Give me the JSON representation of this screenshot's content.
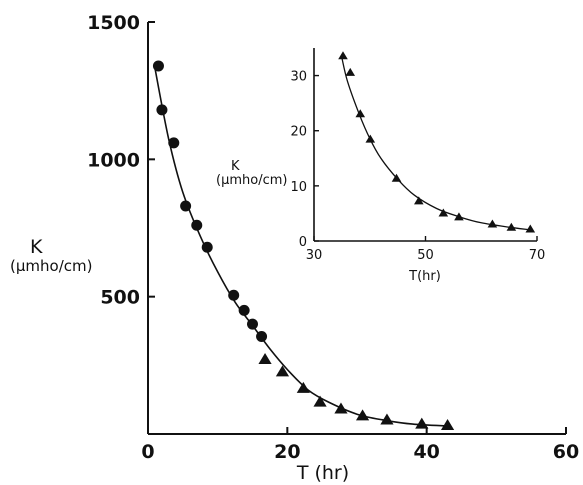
{
  "chart_data": [
    {
      "type": "scatter",
      "xlabel": "T (hr)",
      "ylabel": "K",
      "ylabel_unit": "(μmho/cm)",
      "xlim": [
        0,
        60
      ],
      "ylim": [
        0,
        1500
      ],
      "xticks": [
        "0",
        "20",
        "40",
        "60"
      ],
      "yticks": [
        "500",
        "1000",
        "1500"
      ],
      "grid": false,
      "series": [
        {
          "marker": "circle",
          "x": [
            1.5,
            2.0,
            3.7,
            5.4,
            7.0,
            8.5,
            12.3,
            13.8,
            15.0,
            16.3
          ],
          "y": [
            1340,
            1180,
            1060,
            830,
            760,
            680,
            505,
            450,
            400,
            355
          ]
        },
        {
          "marker": "triangle",
          "x": [
            16.8,
            19.3,
            22.3,
            24.7,
            27.7,
            30.8,
            34.3,
            39.3,
            43.0
          ],
          "y": [
            270,
            225,
            165,
            115,
            90,
            65,
            50,
            35,
            30
          ]
        }
      ],
      "fit_curve": {
        "x": [
          0.9,
          3,
          5,
          7.5,
          10,
          12.5,
          15,
          17.5,
          20,
          23,
          26,
          30,
          34,
          38,
          43
        ],
        "y": [
          1345,
          1070,
          880,
          720,
          590,
          480,
          395,
          310,
          235,
          160,
          115,
          72,
          50,
          36,
          29
        ]
      }
    },
    {
      "type": "scatter",
      "inset": true,
      "xlabel": "T(hr)",
      "ylabel": "K",
      "ylabel_unit": "(μmho/cm)",
      "xlim": [
        30,
        70
      ],
      "ylim": [
        0,
        35
      ],
      "xticks": [
        "30",
        "50",
        "70"
      ],
      "yticks": [
        "0",
        "10",
        "20",
        "30"
      ],
      "grid": false,
      "series": [
        {
          "marker": "triangle",
          "x": [
            35.2,
            36.5,
            38.3,
            40.1,
            44.8,
            48.8,
            53.2,
            56.0,
            62.0,
            65.4,
            68.8
          ],
          "y": [
            33.5,
            30.5,
            23.0,
            18.4,
            11.3,
            7.2,
            5.0,
            4.3,
            3.0,
            2.4,
            2.1
          ]
        }
      ],
      "fit_curve": {
        "x": [
          35.0,
          36,
          38,
          40,
          42,
          45,
          48,
          52,
          56,
          60,
          65,
          69
        ],
        "y": [
          33.2,
          29.0,
          23.3,
          18.6,
          15.0,
          11.2,
          8.3,
          5.9,
          4.4,
          3.3,
          2.5,
          2.0
        ]
      }
    }
  ]
}
